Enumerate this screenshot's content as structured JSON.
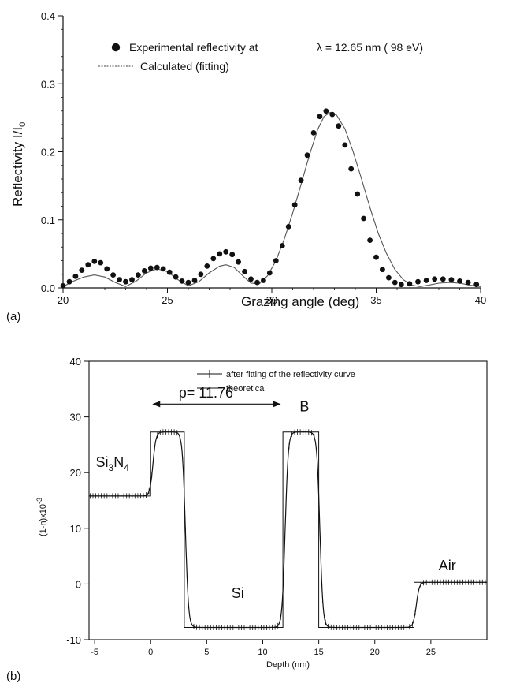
{
  "chart_data": [
    {
      "type": "scatter",
      "panel_label": "(a)",
      "xlabel": "Grazing angle (deg)",
      "ylabel": "Reflectivity  I/I",
      "ylabel_sub": "0",
      "xlim": [
        20,
        40
      ],
      "ylim": [
        0,
        0.4
      ],
      "x_ticks": [
        "20",
        "25",
        "30",
        "35",
        "40"
      ],
      "y_ticks": [
        "0.0",
        "0.1",
        "0.2",
        "0.3",
        "0.4"
      ],
      "legend": [
        {
          "label": "Experimental reflectivity at",
          "extra": "λ = 12.65 nm ( 98 eV)"
        },
        {
          "label": "Calculated (fitting)"
        }
      ],
      "series": [
        {
          "name": "Experimental reflectivity at λ = 12.65 nm ( 98 eV)",
          "marker": "dot",
          "points": [
            [
              20.0,
              0.003
            ],
            [
              20.3,
              0.009
            ],
            [
              20.6,
              0.017
            ],
            [
              20.9,
              0.026
            ],
            [
              21.2,
              0.034
            ],
            [
              21.5,
              0.039
            ],
            [
              21.8,
              0.037
            ],
            [
              22.1,
              0.028
            ],
            [
              22.4,
              0.019
            ],
            [
              22.7,
              0.012
            ],
            [
              23.0,
              0.009
            ],
            [
              23.3,
              0.012
            ],
            [
              23.6,
              0.019
            ],
            [
              23.9,
              0.025
            ],
            [
              24.2,
              0.029
            ],
            [
              24.5,
              0.03
            ],
            [
              24.8,
              0.028
            ],
            [
              25.1,
              0.023
            ],
            [
              25.4,
              0.016
            ],
            [
              25.7,
              0.01
            ],
            [
              26.0,
              0.008
            ],
            [
              26.3,
              0.011
            ],
            [
              26.6,
              0.02
            ],
            [
              26.9,
              0.032
            ],
            [
              27.2,
              0.043
            ],
            [
              27.5,
              0.05
            ],
            [
              27.8,
              0.053
            ],
            [
              28.1,
              0.049
            ],
            [
              28.4,
              0.038
            ],
            [
              28.7,
              0.024
            ],
            [
              29.0,
              0.013
            ],
            [
              29.3,
              0.008
            ],
            [
              29.6,
              0.011
            ],
            [
              29.9,
              0.022
            ],
            [
              30.2,
              0.04
            ],
            [
              30.5,
              0.062
            ],
            [
              30.8,
              0.09
            ],
            [
              31.1,
              0.122
            ],
            [
              31.4,
              0.158
            ],
            [
              31.7,
              0.195
            ],
            [
              32.0,
              0.228
            ],
            [
              32.3,
              0.252
            ],
            [
              32.6,
              0.26
            ],
            [
              32.9,
              0.255
            ],
            [
              33.2,
              0.238
            ],
            [
              33.5,
              0.21
            ],
            [
              33.8,
              0.175
            ],
            [
              34.1,
              0.138
            ],
            [
              34.4,
              0.102
            ],
            [
              34.7,
              0.07
            ],
            [
              35.0,
              0.045
            ],
            [
              35.3,
              0.027
            ],
            [
              35.6,
              0.015
            ],
            [
              35.9,
              0.008
            ],
            [
              36.2,
              0.005
            ],
            [
              36.6,
              0.006
            ],
            [
              37.0,
              0.009
            ],
            [
              37.4,
              0.011
            ],
            [
              37.8,
              0.013
            ],
            [
              38.2,
              0.013
            ],
            [
              38.6,
              0.012
            ],
            [
              39.0,
              0.01
            ],
            [
              39.4,
              0.008
            ],
            [
              39.8,
              0.005
            ]
          ]
        },
        {
          "name": "Calculated (fitting)",
          "marker": "line",
          "points": [
            [
              20.0,
              0.002
            ],
            [
              20.5,
              0.01
            ],
            [
              21.0,
              0.016
            ],
            [
              21.5,
              0.019
            ],
            [
              22.0,
              0.016
            ],
            [
              22.5,
              0.008
            ],
            [
              23.0,
              0.002
            ],
            [
              23.5,
              0.01
            ],
            [
              24.0,
              0.022
            ],
            [
              24.5,
              0.028
            ],
            [
              25.0,
              0.024
            ],
            [
              25.5,
              0.012
            ],
            [
              26.0,
              0.003
            ],
            [
              26.5,
              0.009
            ],
            [
              27.0,
              0.022
            ],
            [
              27.5,
              0.032
            ],
            [
              27.8,
              0.034
            ],
            [
              28.2,
              0.03
            ],
            [
              28.6,
              0.018
            ],
            [
              29.0,
              0.007
            ],
            [
              29.4,
              0.006
            ],
            [
              29.8,
              0.018
            ],
            [
              30.2,
              0.04
            ],
            [
              30.6,
              0.072
            ],
            [
              31.0,
              0.11
            ],
            [
              31.4,
              0.152
            ],
            [
              31.8,
              0.195
            ],
            [
              32.2,
              0.233
            ],
            [
              32.5,
              0.252
            ],
            [
              32.8,
              0.258
            ],
            [
              33.1,
              0.254
            ],
            [
              33.5,
              0.234
            ],
            [
              33.9,
              0.2
            ],
            [
              34.3,
              0.16
            ],
            [
              34.7,
              0.118
            ],
            [
              35.1,
              0.08
            ],
            [
              35.5,
              0.05
            ],
            [
              35.9,
              0.027
            ],
            [
              36.3,
              0.012
            ],
            [
              36.7,
              0.004
            ],
            [
              37.1,
              0.002
            ],
            [
              37.5,
              0.004
            ],
            [
              38.0,
              0.007
            ],
            [
              38.5,
              0.008
            ],
            [
              39.0,
              0.007
            ],
            [
              39.5,
              0.004
            ],
            [
              40.0,
              0.002
            ]
          ]
        }
      ]
    },
    {
      "type": "line",
      "panel_label": "(b)",
      "xlabel": "Depth (nm)",
      "ylabel": "(1-n)x10",
      "ylabel_sup": "-3",
      "xlim": [
        -5.5,
        30
      ],
      "ylim": [
        -10,
        40
      ],
      "x_ticks": [
        "-5",
        "0",
        "5",
        "10",
        "15",
        "20",
        "25"
      ],
      "y_ticks": [
        "-10",
        "0",
        "10",
        "20",
        "30",
        "40"
      ],
      "legend": [
        {
          "label": "after fitting of the reflectivity curve",
          "marker": "plus-line"
        },
        {
          "label": "theoretical",
          "marker": "line"
        }
      ],
      "annotations": {
        "period": "p= 11.76",
        "period_range": [
          0,
          11.76
        ],
        "layers": [
          {
            "text": "Si",
            "sub": "3",
            "text2": "N",
            "sub2": "4",
            "x": -4.9,
            "y": 21
          },
          {
            "text": "B",
            "x": 13.3,
            "y": 31
          },
          {
            "text": "Si",
            "x": 7.2,
            "y": -2.5
          },
          {
            "text": "Air",
            "x": 25.7,
            "y": 2.5
          }
        ]
      },
      "series": [
        {
          "name": "theoretical",
          "marker": "line",
          "points": [
            [
              -5.5,
              15.8
            ],
            [
              0,
              15.8
            ],
            [
              0,
              27.3
            ],
            [
              3.0,
              27.3
            ],
            [
              3.0,
              -7.8
            ],
            [
              11.8,
              -7.8
            ],
            [
              11.8,
              27.3
            ],
            [
              15.0,
              27.3
            ],
            [
              15.0,
              -7.8
            ],
            [
              23.5,
              -7.8
            ],
            [
              23.5,
              0.3
            ],
            [
              30,
              0.3
            ]
          ]
        },
        {
          "name": "after fitting of the reflectivity curve",
          "marker": "plus-line",
          "transitions": [
            {
              "x": 0.2,
              "from": 15.8,
              "to": 27.3,
              "width": 0.55
            },
            {
              "x": 3.1,
              "from": 27.3,
              "to": -7.8,
              "width": 0.55
            },
            {
              "x": 12.0,
              "from": -7.8,
              "to": 27.3,
              "width": 0.55
            },
            {
              "x": 15.1,
              "from": 27.3,
              "to": -7.8,
              "width": 0.55
            },
            {
              "x": 23.7,
              "from": -7.8,
              "to": 0.3,
              "width": 0.55
            }
          ]
        }
      ]
    }
  ]
}
